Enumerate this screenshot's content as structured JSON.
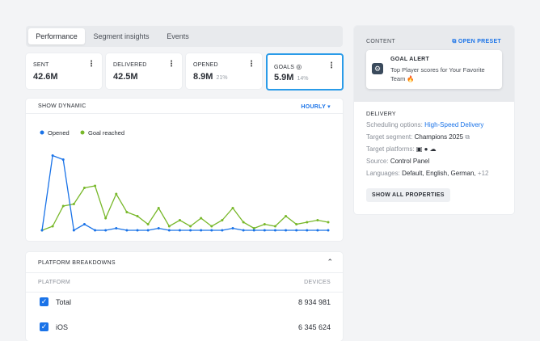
{
  "tabs": [
    "Performance",
    "Segment insights",
    "Events"
  ],
  "stats": [
    {
      "label": "SENT",
      "value": "42.6M"
    },
    {
      "label": "DELIVERED",
      "value": "42.5M"
    },
    {
      "label": "OPENED",
      "value": "8.9M",
      "percent": "21%"
    },
    {
      "label": "GOALS",
      "value": "5.9M",
      "percent": "14%"
    }
  ],
  "chart_data": {
    "type": "line",
    "title": "SHOW DYNAMIC",
    "interval": "HOURLY",
    "ylim": [
      0,
      4
    ],
    "series": [
      {
        "name": "Opened",
        "color": "#1a73e8",
        "values": [
          0,
          3.7,
          3.5,
          0,
          0.3,
          0,
          0,
          0.1,
          0,
          0,
          0,
          0.1,
          0,
          0,
          0,
          0,
          0,
          0,
          0.1,
          0,
          0,
          0,
          0,
          0,
          0,
          0,
          0,
          0
        ]
      },
      {
        "name": "Goal reached",
        "color": "#78b82a",
        "values": [
          0,
          0.2,
          1.2,
          1.3,
          2.1,
          2.2,
          0.6,
          1.8,
          0.9,
          0.7,
          0.3,
          1.1,
          0.2,
          0.5,
          0.2,
          0.6,
          0.2,
          0.5,
          1.1,
          0.4,
          0.1,
          0.3,
          0.2,
          0.7,
          0.3,
          0.4,
          0.5,
          0.4
        ]
      }
    ]
  },
  "platform": {
    "title": "PLATFORM BREAKDOWNS",
    "columns": [
      "PLATFORM",
      "DEVICES"
    ],
    "rows": [
      [
        "Total",
        "8 934 981"
      ],
      [
        "iOS",
        "6 345 624"
      ]
    ]
  },
  "content": {
    "title": "CONTENT",
    "action": "OPEN PRESET",
    "alert_title": "GOAL ALERT",
    "alert_text": "Top Player scores for Your Favorite Team 🔥"
  },
  "delivery": {
    "title": "DELIVERY",
    "items": [
      {
        "label": "Scheduling options:",
        "value": "High-Speed Delivery"
      },
      {
        "label": "Target segment:",
        "value": "Champions 2025"
      },
      {
        "label": "Target platforms:"
      },
      {
        "label": "Source:",
        "value": "Control Panel"
      },
      {
        "label": "Languages:",
        "value": "Default, English, German,",
        "extra": "+12"
      }
    ],
    "button": "SHOW ALL PROPERTIES"
  }
}
